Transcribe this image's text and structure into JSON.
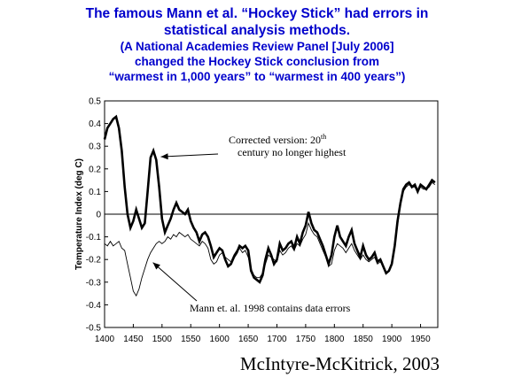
{
  "headline": {
    "line1": "The famous Mann et al. “Hockey Stick” had errors in",
    "line2": "statistical analysis methods.",
    "line3": "(A National Academies Review Panel [July 2006]",
    "line4": "changed the Hockey Stick conclusion from",
    "line5": "“warmest in 1,000 years” to “warmest in 400 years”)"
  },
  "credit": "McIntyre-McKitrick, 2003",
  "chart_data": {
    "type": "line",
    "title": "",
    "xlabel": "",
    "ylabel": "Temperature Index (deg C)",
    "xlim": [
      1400,
      1980
    ],
    "ylim": [
      -0.5,
      0.5
    ],
    "x_ticks": [
      1400,
      1450,
      1500,
      1550,
      1600,
      1650,
      1700,
      1750,
      1800,
      1850,
      1900,
      1950
    ],
    "y_ticks": [
      -0.5,
      -0.4,
      -0.3,
      -0.2,
      -0.1,
      0,
      0.1,
      0.2,
      0.3,
      0.4,
      0.5
    ],
    "y_tick_labels": [
      "-0.5",
      "-0.4",
      "-0.3",
      "-0.2",
      "-0.1",
      "0",
      "0.1",
      "0.2",
      "0.3",
      "0.4",
      "0.5"
    ],
    "zero_line": true,
    "grid": false,
    "series": [
      {
        "name": "",
        "style": "thick",
        "color": "#000000",
        "x": [
          1400,
          1405,
          1410,
          1415,
          1420,
          1425,
          1430,
          1435,
          1440,
          1445,
          1450,
          1455,
          1460,
          1465,
          1470,
          1475,
          1480,
          1485,
          1490,
          1495,
          1500,
          1505,
          1510,
          1515,
          1520,
          1525,
          1530,
          1535,
          1540,
          1545,
          1550,
          1555,
          1560,
          1565,
          1570,
          1575,
          1580,
          1585,
          1590,
          1595,
          1600,
          1605,
          1610,
          1615,
          1620,
          1625,
          1630,
          1635,
          1640,
          1645,
          1650,
          1655,
          1660,
          1665,
          1670,
          1675,
          1680,
          1685,
          1690,
          1695,
          1700,
          1705,
          1710,
          1715,
          1720,
          1725,
          1730,
          1735,
          1740,
          1745,
          1750,
          1755,
          1760,
          1765,
          1770,
          1775,
          1780,
          1785,
          1790,
          1795,
          1800,
          1805,
          1810,
          1815,
          1820,
          1825,
          1830,
          1835,
          1840,
          1845,
          1850,
          1855,
          1860,
          1865,
          1870,
          1875,
          1880,
          1885,
          1890,
          1895,
          1900,
          1905,
          1910,
          1915,
          1920,
          1925,
          1930,
          1935,
          1940,
          1945,
          1950,
          1955,
          1960,
          1965,
          1970,
          1975
        ],
        "values": [
          0.33,
          0.38,
          0.4,
          0.42,
          0.43,
          0.38,
          0.28,
          0.12,
          0.0,
          -0.06,
          -0.03,
          0.02,
          -0.02,
          -0.06,
          -0.04,
          0.1,
          0.25,
          0.28,
          0.24,
          0.12,
          -0.02,
          -0.08,
          -0.05,
          -0.02,
          0.02,
          0.05,
          0.02,
          0.01,
          0.0,
          0.02,
          -0.03,
          -0.06,
          -0.08,
          -0.12,
          -0.09,
          -0.08,
          -0.1,
          -0.14,
          -0.19,
          -0.17,
          -0.15,
          -0.16,
          -0.2,
          -0.23,
          -0.22,
          -0.19,
          -0.17,
          -0.14,
          -0.15,
          -0.14,
          -0.16,
          -0.25,
          -0.28,
          -0.29,
          -0.3,
          -0.27,
          -0.2,
          -0.15,
          -0.18,
          -0.22,
          -0.2,
          -0.13,
          -0.16,
          -0.15,
          -0.13,
          -0.12,
          -0.15,
          -0.1,
          -0.13,
          -0.08,
          -0.05,
          0.01,
          -0.04,
          -0.07,
          -0.08,
          -0.11,
          -0.14,
          -0.18,
          -0.22,
          -0.18,
          -0.1,
          -0.05,
          -0.1,
          -0.12,
          -0.14,
          -0.1,
          -0.07,
          -0.13,
          -0.16,
          -0.19,
          -0.14,
          -0.18,
          -0.2,
          -0.19,
          -0.17,
          -0.21,
          -0.2,
          -0.23,
          -0.26,
          -0.25,
          -0.22,
          -0.14,
          -0.03,
          0.05,
          0.11,
          0.13,
          0.14,
          0.12,
          0.13,
          0.1,
          0.13,
          0.12,
          0.11,
          0.13,
          0.15,
          0.14
        ]
      },
      {
        "name": "",
        "style": "thin",
        "color": "#000000",
        "x": [
          1400,
          1405,
          1410,
          1415,
          1420,
          1425,
          1430,
          1435,
          1440,
          1445,
          1450,
          1455,
          1460,
          1465,
          1470,
          1475,
          1480,
          1485,
          1490,
          1495,
          1500,
          1505,
          1510,
          1515,
          1520,
          1525,
          1530,
          1535,
          1540,
          1545,
          1550,
          1555,
          1560,
          1565,
          1570,
          1575,
          1580,
          1585,
          1590,
          1595,
          1600,
          1605,
          1610,
          1615,
          1620,
          1625,
          1630,
          1635,
          1640,
          1645,
          1650,
          1655,
          1660,
          1665,
          1670,
          1675,
          1680,
          1685,
          1690,
          1695,
          1700,
          1705,
          1710,
          1715,
          1720,
          1725,
          1730,
          1735,
          1740,
          1745,
          1750,
          1755,
          1760,
          1765,
          1770,
          1775,
          1780,
          1785,
          1790,
          1795,
          1800,
          1805,
          1810,
          1815,
          1820,
          1825,
          1830,
          1835,
          1840,
          1845,
          1850,
          1855,
          1860,
          1865,
          1870,
          1875,
          1880,
          1885,
          1890,
          1895,
          1900,
          1905,
          1910,
          1915,
          1920,
          1925,
          1930,
          1935,
          1940,
          1945,
          1950,
          1955,
          1960,
          1965,
          1970,
          1975
        ],
        "values": [
          -0.13,
          -0.14,
          -0.12,
          -0.14,
          -0.13,
          -0.12,
          -0.15,
          -0.16,
          -0.22,
          -0.28,
          -0.34,
          -0.36,
          -0.33,
          -0.28,
          -0.24,
          -0.2,
          -0.17,
          -0.15,
          -0.13,
          -0.12,
          -0.13,
          -0.12,
          -0.1,
          -0.11,
          -0.09,
          -0.1,
          -0.08,
          -0.09,
          -0.1,
          -0.09,
          -0.11,
          -0.12,
          -0.13,
          -0.14,
          -0.12,
          -0.13,
          -0.15,
          -0.2,
          -0.22,
          -0.21,
          -0.18,
          -0.17,
          -0.19,
          -0.2,
          -0.21,
          -0.18,
          -0.16,
          -0.15,
          -0.17,
          -0.16,
          -0.19,
          -0.24,
          -0.27,
          -0.28,
          -0.28,
          -0.26,
          -0.22,
          -0.18,
          -0.19,
          -0.2,
          -0.21,
          -0.16,
          -0.18,
          -0.17,
          -0.15,
          -0.14,
          -0.16,
          -0.13,
          -0.14,
          -0.11,
          -0.09,
          -0.04,
          -0.07,
          -0.09,
          -0.1,
          -0.13,
          -0.16,
          -0.19,
          -0.23,
          -0.22,
          -0.16,
          -0.13,
          -0.14,
          -0.15,
          -0.17,
          -0.15,
          -0.13,
          -0.16,
          -0.18,
          -0.2,
          -0.18,
          -0.2,
          -0.21,
          -0.2,
          -0.19,
          -0.22,
          -0.21,
          -0.23,
          -0.26,
          -0.25,
          -0.22,
          -0.15,
          -0.05,
          0.04,
          0.1,
          0.12,
          0.13,
          0.12,
          0.12,
          0.1,
          0.12,
          0.11,
          0.11,
          0.12,
          0.14,
          0.13
        ]
      }
    ],
    "annotations": [
      {
        "text": "Corrected version: 20th century no longer highest",
        "x": 1640,
        "y": 0.2,
        "arrow_to": [
          1498,
          0.23
        ]
      },
      {
        "text": "Mann et. al. 1998 contains data errors",
        "x": 1580,
        "y": -0.42,
        "arrow_to": [
          1478,
          -0.19
        ]
      }
    ]
  }
}
